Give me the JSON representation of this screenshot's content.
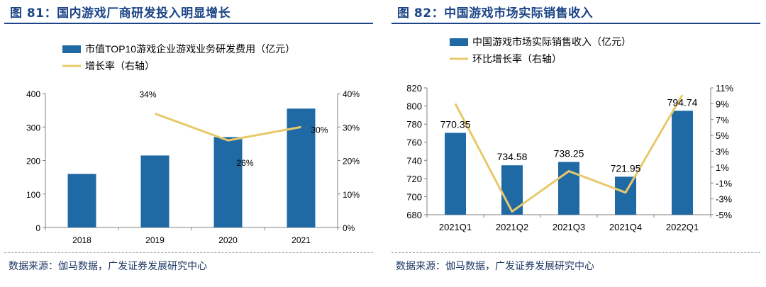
{
  "left": {
    "figure_title": "图 81：国内游戏厂商研发投入明显增长",
    "source": "数据来源：伽马数据，广发证券发展研究中心"
  },
  "right": {
    "figure_title": "图 82：中国游戏市场实际销售收入",
    "source": "数据来源：伽马数据，广发证券发展研究中心"
  },
  "colors": {
    "bar": "#1f6aa5",
    "line": "#e8c96a",
    "title": "#1c4587"
  },
  "chart_data": [
    {
      "type": "bar",
      "categories": [
        "2018",
        "2019",
        "2020",
        "2021"
      ],
      "series": [
        {
          "name": "市值TOP10游戏企业游戏业务研发费用（亿元）",
          "kind": "bar",
          "axis": "left",
          "values": [
            160,
            215,
            270,
            355
          ]
        },
        {
          "name": "增长率（右轴）",
          "kind": "line",
          "axis": "right",
          "values": [
            null,
            34,
            26,
            30
          ]
        }
      ],
      "data_labels": [
        "34%",
        "26%",
        "30%"
      ],
      "ylim_left": [
        0,
        400
      ],
      "yticks_left": [
        "0",
        "100",
        "200",
        "300",
        "400"
      ],
      "ylim_right": [
        0,
        40
      ],
      "yticks_right": [
        "0%",
        "10%",
        "20%",
        "30%",
        "40%"
      ],
      "legend": "top-left",
      "grid": false
    },
    {
      "type": "bar",
      "categories": [
        "2021Q1",
        "2021Q2",
        "2021Q3",
        "2021Q4",
        "2022Q1"
      ],
      "series": [
        {
          "name": "中国游戏市场实际销售收入（亿元）",
          "kind": "bar",
          "axis": "left",
          "values": [
            770.35,
            734.58,
            738.25,
            721.95,
            794.74
          ]
        },
        {
          "name": "环比增长率（右轴）",
          "kind": "line",
          "axis": "right",
          "values": [
            9.0,
            -4.6,
            0.5,
            -2.2,
            10.1
          ]
        }
      ],
      "data_labels": [
        "770.35",
        "734.58",
        "738.25",
        "721.95",
        "794.74"
      ],
      "ylim_left": [
        680,
        820
      ],
      "yticks_left": [
        "680",
        "700",
        "720",
        "740",
        "760",
        "780",
        "800",
        "820"
      ],
      "ylim_right": [
        -5,
        11
      ],
      "yticks_right": [
        "-5%",
        "-3%",
        "-1%",
        "1%",
        "3%",
        "5%",
        "7%",
        "9%",
        "11%"
      ],
      "legend": "top-left",
      "grid": false
    }
  ]
}
